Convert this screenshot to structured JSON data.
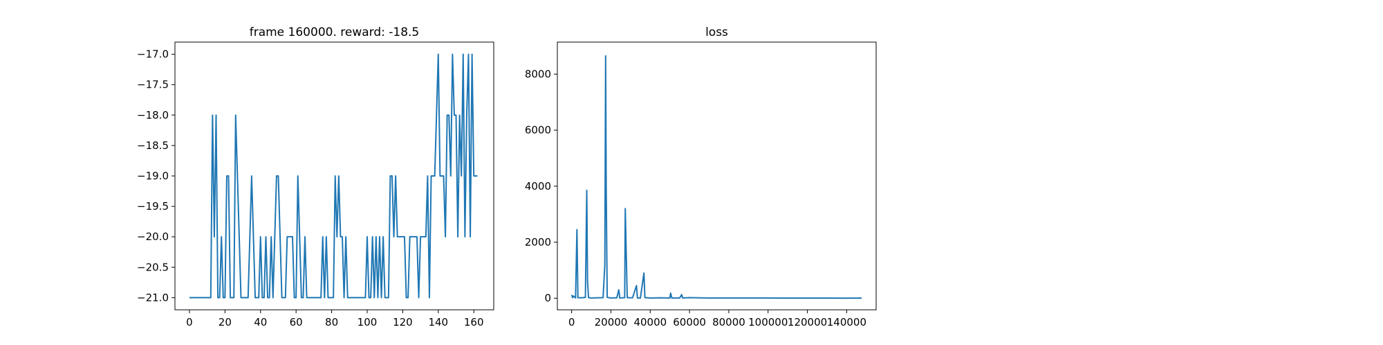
{
  "chart_data": [
    {
      "type": "line",
      "title": "frame 160000. reward: -18.5",
      "color": "#1f77b4",
      "x": [
        0,
        1,
        2,
        3,
        4,
        5,
        6,
        7,
        8,
        9,
        10,
        11,
        12,
        13,
        14,
        15,
        16,
        17,
        18,
        19,
        20,
        21,
        22,
        23,
        24,
        25,
        26,
        27,
        28,
        29,
        30,
        31,
        32,
        33,
        34,
        35,
        36,
        37,
        38,
        39,
        40,
        41,
        42,
        43,
        44,
        45,
        46,
        47,
        48,
        49,
        50,
        51,
        52,
        53,
        54,
        55,
        56,
        57,
        58,
        59,
        60,
        61,
        62,
        63,
        64,
        65,
        66,
        67,
        68,
        69,
        70,
        71,
        72,
        73,
        74,
        75,
        76,
        77,
        78,
        79,
        80,
        81,
        82,
        83,
        84,
        85,
        86,
        87,
        88,
        89,
        90,
        91,
        92,
        93,
        94,
        95,
        96,
        97,
        98,
        99,
        100,
        101,
        102,
        103,
        104,
        105,
        106,
        107,
        108,
        109,
        110,
        111,
        112,
        113,
        114,
        115,
        116,
        117,
        118,
        119,
        120,
        121,
        122,
        123,
        124,
        125,
        126,
        127,
        128,
        129,
        130,
        131,
        132,
        133,
        134,
        135,
        136,
        137,
        138,
        139,
        140,
        141,
        142,
        143,
        144,
        145,
        146,
        147,
        148,
        149,
        150,
        151,
        152,
        153,
        154,
        155,
        156,
        157,
        158,
        159,
        160,
        161,
        162
      ],
      "values": [
        -21,
        -21,
        -21,
        -21,
        -21,
        -21,
        -21,
        -21,
        -21,
        -21,
        -21,
        -21,
        -21,
        -18,
        -20,
        -18,
        -21,
        -21,
        -20,
        -21,
        -21,
        -19,
        -19,
        -21,
        -21,
        -21,
        -18,
        -19,
        -20,
        -21,
        -21,
        -21,
        -21,
        -21,
        -20,
        -19,
        -20,
        -21,
        -21,
        -21,
        -20,
        -21,
        -21,
        -20,
        -21,
        -21,
        -20,
        -21,
        -20,
        -19,
        -19,
        -20,
        -21,
        -21,
        -21,
        -20,
        -20,
        -20,
        -20,
        -21,
        -21,
        -19,
        -20,
        -21,
        -21,
        -20,
        -21,
        -21,
        -21,
        -21,
        -21,
        -21,
        -21,
        -21,
        -21,
        -20,
        -21,
        -20,
        -21,
        -21,
        -21,
        -21,
        -19,
        -20,
        -19,
        -20,
        -20,
        -21,
        -20,
        -21,
        -21,
        -21,
        -21,
        -21,
        -21,
        -21,
        -21,
        -21,
        -21,
        -21,
        -20,
        -21,
        -21,
        -20,
        -21,
        -20,
        -21,
        -20,
        -21,
        -20,
        -21,
        -21,
        -21,
        -19,
        -19,
        -20,
        -19,
        -20,
        -20,
        -20,
        -20,
        -20,
        -21,
        -21,
        -20,
        -20,
        -20,
        -20,
        -20,
        -21,
        -20,
        -20,
        -20,
        -20,
        -19,
        -21,
        -19,
        -19,
        -19,
        -18,
        -17,
        -19,
        -19,
        -19,
        -20,
        -18,
        -18,
        -19,
        -17,
        -18,
        -18,
        -20,
        -18,
        -19,
        -17,
        -20,
        -18,
        -17,
        -20,
        -17,
        -19,
        -19,
        -19
      ],
      "xlim": [
        -8.15,
        171.2
      ],
      "ylim": [
        -21.2,
        -16.8
      ],
      "xticks": [
        0,
        20,
        40,
        60,
        80,
        100,
        120,
        140,
        160
      ],
      "yticks": [
        {
          "value": -21,
          "label": "−21.0"
        },
        {
          "value": -20.5,
          "label": "−20.5"
        },
        {
          "value": -20,
          "label": "−20.0"
        },
        {
          "value": -19.5,
          "label": "−19.5"
        },
        {
          "value": -19,
          "label": "−19.0"
        },
        {
          "value": -18.5,
          "label": "−18.5"
        },
        {
          "value": -18,
          "label": "−18.0"
        },
        {
          "value": -17.5,
          "label": "−17.5"
        },
        {
          "value": -17,
          "label": "−17.0"
        }
      ]
    },
    {
      "type": "line",
      "title": "loss",
      "color": "#1f77b4",
      "x": [
        0,
        500,
        1000,
        2000,
        2700,
        3200,
        5000,
        7000,
        7700,
        8100,
        8600,
        10000,
        13000,
        16000,
        16900,
        17300,
        17600,
        18100,
        20000,
        23000,
        24000,
        24500,
        27000,
        27300,
        27700,
        28300,
        31000,
        33000,
        33500,
        35000,
        36800,
        37300,
        40000,
        45000,
        50000,
        50400,
        51000,
        55000,
        56000,
        56500,
        60000,
        70000,
        80000,
        90000,
        100000,
        110000,
        120000,
        130000,
        140000,
        147600
      ],
      "values": [
        120,
        20,
        80,
        10,
        2450,
        20,
        15,
        30,
        3850,
        600,
        20,
        10,
        15,
        20,
        1200,
        8650,
        3900,
        30,
        10,
        15,
        300,
        10,
        20,
        3200,
        1900,
        20,
        15,
        450,
        10,
        10,
        900,
        20,
        10,
        15,
        10,
        180,
        10,
        10,
        130,
        10,
        20,
        10,
        8,
        10,
        8,
        6,
        5,
        5,
        4,
        5
      ],
      "xlim": [
        -7273,
        155000
      ],
      "ylim": [
        -413,
        9143
      ],
      "xticks": [
        0,
        20000,
        40000,
        60000,
        80000,
        100000,
        120000,
        140000
      ],
      "yticks": [
        0,
        2000,
        4000,
        6000,
        8000
      ]
    }
  ]
}
